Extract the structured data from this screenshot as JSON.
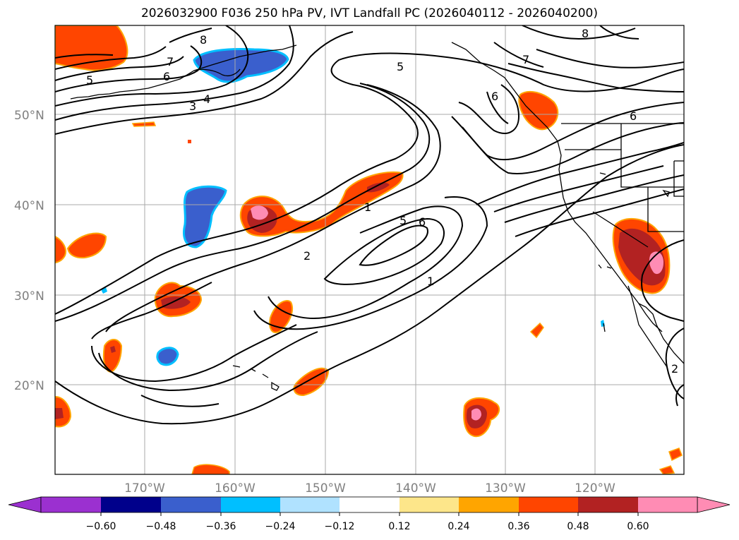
{
  "title": "2026032900 F036 250 hPa PV, IVT Landfall PC (2026040112 - 2026040200)",
  "lat_labels": [
    "50°N",
    "40°N",
    "30°N",
    "20°N"
  ],
  "lon_labels": [
    "170°W",
    "160°W",
    "150°W",
    "140°W",
    "130°W",
    "120°W"
  ],
  "colorbar": {
    "ticks": [
      "−0.60",
      "−0.48",
      "−0.36",
      "−0.24",
      "−0.12",
      "0.12",
      "0.24",
      "0.36",
      "0.48",
      "0.60"
    ],
    "colors": {
      "under": "#9b30d0",
      "bins": [
        "#00008b",
        "#3a5fcd",
        "#00bfff",
        "#b0e2ff",
        "#ffffff",
        "#fde68a",
        "#ffa500",
        "#ff4500",
        "#b22222",
        "#ff8cb4"
      ],
      "over": "#ff8cb4"
    }
  },
  "contour_labels": [
    "8",
    "7",
    "6",
    "5",
    "4",
    "3",
    "5",
    "7",
    "6",
    "8",
    "6",
    "1",
    "5",
    "6",
    "2",
    "1",
    "2"
  ],
  "colors": {
    "neg_strong": "#3a5fcd",
    "neg_light": "#00bfff",
    "pos_yellow": "#fde68a",
    "pos_orange": "#ffa500",
    "pos_red": "#ff4500",
    "pos_dark": "#b22222",
    "pos_pink": "#ff8cb4"
  }
}
